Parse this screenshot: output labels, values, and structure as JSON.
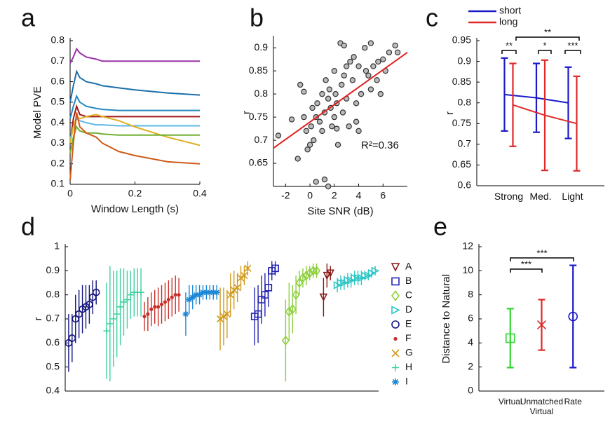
{
  "chart_data": [
    {
      "type": "line",
      "panel": "a",
      "xlabel": "Window Length (s)",
      "ylabel": "Model PVE",
      "x": [
        0,
        0.01,
        0.02,
        0.03,
        0.05,
        0.08,
        0.1,
        0.15,
        0.2,
        0.3,
        0.4
      ],
      "xlim": [
        0,
        0.4
      ],
      "xticks": [
        0,
        0.2,
        0.4
      ],
      "ylim": [
        0.1,
        0.8
      ],
      "yticks": [
        0.1,
        0.2,
        0.3,
        0.4,
        0.5,
        0.6,
        0.7,
        0.8
      ],
      "series": [
        {
          "color": "#9b30a8",
          "values": [
            0.69,
            0.72,
            0.76,
            0.74,
            0.72,
            0.71,
            0.7,
            0.7,
            0.7,
            0.7,
            0.7
          ]
        },
        {
          "color": "#1a6faa",
          "values": [
            0.5,
            0.58,
            0.65,
            0.62,
            0.6,
            0.59,
            0.58,
            0.57,
            0.56,
            0.545,
            0.535
          ]
        },
        {
          "color": "#2389c0",
          "values": [
            0.42,
            0.48,
            0.53,
            0.5,
            0.48,
            0.47,
            0.465,
            0.46,
            0.46,
            0.46,
            0.46
          ]
        },
        {
          "color": "#a01818",
          "values": [
            0.3,
            0.42,
            0.48,
            0.44,
            0.43,
            0.43,
            0.43,
            0.43,
            0.43,
            0.43,
            0.43
          ]
        },
        {
          "color": "#5bb8e8",
          "values": [
            0.32,
            0.38,
            0.42,
            0.41,
            0.4,
            0.39,
            0.39,
            0.385,
            0.385,
            0.385,
            0.385
          ]
        },
        {
          "color": "#e0b020",
          "values": [
            0.3,
            0.38,
            0.43,
            0.42,
            0.43,
            0.44,
            0.43,
            0.41,
            0.38,
            0.33,
            0.29
          ]
        },
        {
          "color": "#70b030",
          "values": [
            0.25,
            0.33,
            0.38,
            0.36,
            0.35,
            0.35,
            0.345,
            0.34,
            0.34,
            0.34,
            0.34
          ]
        },
        {
          "color": "#d05a18",
          "values": [
            0.12,
            0.3,
            0.45,
            0.38,
            0.35,
            0.33,
            0.3,
            0.26,
            0.24,
            0.21,
            0.2
          ]
        }
      ]
    },
    {
      "type": "scatter",
      "panel": "b",
      "xlabel": "Site SNR (dB)",
      "ylabel": "r",
      "annotation": "R²=0.36",
      "xlim": [
        -3,
        8
      ],
      "xticks": [
        -2,
        0,
        2,
        4,
        6
      ],
      "ylim": [
        0.6,
        0.92
      ],
      "yticks": [
        0.65,
        0.7,
        0.75,
        0.8,
        0.85,
        0.9
      ],
      "color": "#bbbbbb",
      "x": [
        -2.6,
        -1.5,
        -1,
        -0.8,
        -0.5,
        -0.3,
        0,
        0.1,
        0.3,
        0.5,
        -0.2,
        0.2,
        0.6,
        0.8,
        1,
        1,
        1.2,
        1.3,
        1.5,
        1.6,
        1.7,
        1.8,
        2,
        2,
        2.1,
        2.2,
        2.3,
        2.5,
        2.6,
        2.7,
        2.8,
        3,
        3,
        3.2,
        3.3,
        3.5,
        3.6,
        3.8,
        4,
        4,
        4.2,
        4.5,
        4.6,
        4.8,
        5,
        5,
        5.2,
        5.5,
        5.6,
        5.8,
        6,
        6.2,
        6.5,
        7,
        7.2,
        2.8,
        1.5,
        0.5,
        2.2,
        3.8,
        -0.5,
        1.2
      ],
      "values": [
        0.71,
        0.745,
        0.66,
        0.82,
        0.75,
        0.72,
        0.69,
        0.73,
        0.7,
        0.75,
        0.68,
        0.77,
        0.78,
        0.74,
        0.8,
        0.72,
        0.76,
        0.83,
        0.79,
        0.81,
        0.77,
        0.73,
        0.75,
        0.85,
        0.8,
        0.78,
        0.69,
        0.91,
        0.82,
        0.76,
        0.84,
        0.86,
        0.79,
        0.73,
        0.87,
        0.83,
        0.88,
        0.78,
        0.86,
        0.72,
        0.8,
        0.9,
        0.85,
        0.84,
        0.91,
        0.81,
        0.86,
        0.83,
        0.87,
        0.8,
        0.875,
        0.85,
        0.89,
        0.905,
        0.89,
        0.905,
        0.6,
        0.61,
        0.725,
        0.74,
        0.805,
        0.615
      ],
      "fit": {
        "color": "#e02020",
        "x": [
          -3,
          8
        ],
        "values": [
          0.683,
          0.89
        ]
      }
    },
    {
      "type": "errorbar",
      "panel": "c",
      "ylabel": "r",
      "categories": [
        "Strong",
        "Med.",
        "Light"
      ],
      "ylim": [
        0.6,
        0.95
      ],
      "yticks": [
        0.6,
        0.65,
        0.7,
        0.75,
        0.8,
        0.85,
        0.9,
        0.95
      ],
      "annotations": [
        "**",
        "*",
        "***",
        "**"
      ],
      "series": [
        {
          "name": "short",
          "color": "#1a1ac8",
          "connect": true,
          "values": [
            0.82,
            0.812,
            0.8
          ],
          "errors": [
            0.088,
            0.083,
            0.086
          ]
        },
        {
          "name": "long",
          "color": "#e02828",
          "connect": true,
          "values": [
            0.795,
            0.77,
            0.75
          ],
          "errors": [
            0.1,
            0.133,
            0.114
          ]
        }
      ]
    },
    {
      "type": "errorbar",
      "panel": "d",
      "ylabel": "r",
      "xlim": [
        0,
        91
      ],
      "ylim": [
        0.4,
        1
      ],
      "yticks": [
        0.4,
        0.5,
        0.6,
        0.7,
        0.8,
        0.9,
        1
      ],
      "series": [
        {
          "name": "A",
          "color": "#8b1a1a",
          "marker": "triangle-down",
          "x": [
            75,
            76,
            77
          ],
          "values": [
            0.79,
            0.88,
            0.89
          ],
          "errors": [
            0.08,
            0.05,
            0.03
          ]
        },
        {
          "name": "B",
          "color": "#2424b4",
          "marker": "square",
          "x": [
            55,
            56,
            57,
            58,
            59,
            60,
            61
          ],
          "values": [
            0.71,
            0.72,
            0.78,
            0.8,
            0.83,
            0.9,
            0.91
          ],
          "errors": [
            0.12,
            0.12,
            0.1,
            0.09,
            0.08,
            0.04,
            0.03
          ]
        },
        {
          "name": "C",
          "color": "#8ccf3a",
          "marker": "diamond",
          "x": [
            64,
            65,
            66,
            67,
            68,
            69,
            70,
            71,
            72,
            73
          ],
          "values": [
            0.61,
            0.73,
            0.74,
            0.8,
            0.85,
            0.87,
            0.88,
            0.89,
            0.9,
            0.9
          ],
          "errors": [
            0.17,
            0.12,
            0.1,
            0.08,
            0.05,
            0.04,
            0.04,
            0.03,
            0.03,
            0.03
          ]
        },
        {
          "name": "D",
          "color": "#2ec6c6",
          "marker": "triangle-right",
          "x": [
            79,
            80,
            81,
            82,
            83,
            84,
            85,
            86,
            87,
            88,
            89,
            90
          ],
          "values": [
            0.84,
            0.85,
            0.85,
            0.86,
            0.86,
            0.87,
            0.87,
            0.87,
            0.88,
            0.88,
            0.89,
            0.9
          ],
          "errors": [
            0.03,
            0.03,
            0.03,
            0.03,
            0.03,
            0.03,
            0.03,
            0.03,
            0.02,
            0.02,
            0.02,
            0.02
          ]
        },
        {
          "name": "E",
          "color": "#13137e",
          "marker": "circle",
          "x": [
            1,
            2,
            3,
            4,
            5,
            6,
            7,
            8,
            9
          ],
          "values": [
            0.6,
            0.62,
            0.7,
            0.72,
            0.74,
            0.75,
            0.76,
            0.79,
            0.81
          ],
          "errors": [
            0.12,
            0.1,
            0.1,
            0.1,
            0.1,
            0.09,
            0.08,
            0.07,
            0.05
          ]
        },
        {
          "name": "F",
          "color": "#c8302a",
          "marker": "dot",
          "x": [
            23,
            24,
            25,
            26,
            27,
            28,
            29,
            30,
            31,
            32,
            33
          ],
          "values": [
            0.71,
            0.72,
            0.74,
            0.75,
            0.75,
            0.76,
            0.77,
            0.78,
            0.79,
            0.8,
            0.8
          ],
          "errors": [
            0.06,
            0.07,
            0.07,
            0.07,
            0.08,
            0.08,
            0.08,
            0.08,
            0.08,
            0.08,
            0.07
          ]
        },
        {
          "name": "G",
          "color": "#d09a1c",
          "marker": "x",
          "x": [
            45,
            46,
            47,
            48,
            49,
            50,
            51,
            52,
            53
          ],
          "values": [
            0.7,
            0.71,
            0.72,
            0.8,
            0.82,
            0.83,
            0.87,
            0.88,
            0.91
          ],
          "errors": [
            0.13,
            0.12,
            0.1,
            0.09,
            0.08,
            0.06,
            0.05,
            0.04,
            0.03
          ]
        },
        {
          "name": "H",
          "color": "#3fd0a0",
          "marker": "plus",
          "x": [
            12,
            13,
            14,
            15,
            16,
            17,
            18,
            19,
            20,
            21,
            22
          ],
          "values": [
            0.65,
            0.68,
            0.7,
            0.72,
            0.75,
            0.77,
            0.78,
            0.8,
            0.81,
            0.81,
            0.81
          ],
          "errors": [
            0.2,
            0.24,
            0.2,
            0.18,
            0.16,
            0.14,
            0.12,
            0.1,
            0.1,
            0.1,
            0.1
          ]
        },
        {
          "name": "I",
          "color": "#1a86d6",
          "marker": "asterisk",
          "x": [
            35,
            36,
            37,
            38,
            39,
            40,
            41,
            42,
            43,
            44
          ],
          "values": [
            0.72,
            0.78,
            0.79,
            0.8,
            0.8,
            0.81,
            0.81,
            0.81,
            0.81,
            0.81
          ],
          "errors": [
            0.09,
            0.06,
            0.05,
            0.04,
            0.04,
            0.03,
            0.03,
            0.03,
            0.03,
            0.03
          ]
        }
      ]
    },
    {
      "type": "errorbar",
      "panel": "e",
      "ylabel": "Distance to Natural",
      "categories": [
        "Virtual",
        "Unmatched Virtual",
        "Rate"
      ],
      "ylim": [
        0,
        12
      ],
      "yticks": [
        0,
        2,
        4,
        6,
        8,
        10,
        12
      ],
      "annotations": [
        "***",
        "***"
      ],
      "series": [
        {
          "colors": [
            "#2ed62e",
            "#e02828",
            "#1a1ac8"
          ],
          "markers": [
            "square",
            "x",
            "circle"
          ],
          "values": [
            4.4,
            5.5,
            6.2
          ],
          "errors": [
            2.45,
            2.1,
            4.25
          ]
        }
      ]
    }
  ]
}
